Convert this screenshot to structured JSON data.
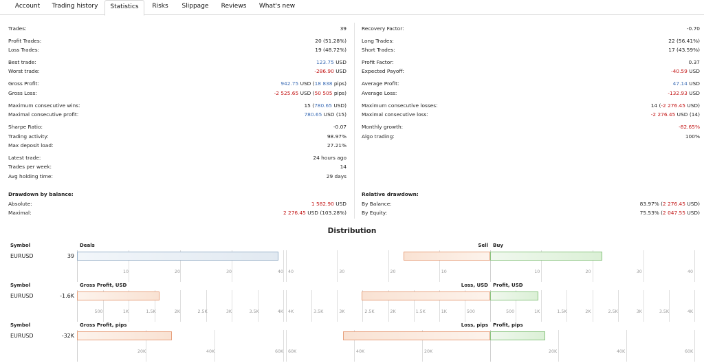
{
  "tabs": [
    {
      "label": "Account",
      "active": false
    },
    {
      "label": "Trading history",
      "active": false
    },
    {
      "label": "Statistics",
      "active": true
    },
    {
      "label": "Risks",
      "active": false
    },
    {
      "label": "Slippage",
      "active": false
    },
    {
      "label": "Reviews",
      "active": false
    },
    {
      "label": "What's new",
      "active": false
    }
  ],
  "left_stats": [
    {
      "label": "Trades:",
      "value": [
        {
          "t": "39"
        }
      ]
    },
    {
      "label": "Profit Trades:",
      "value": [
        {
          "t": "20 (51.28%)"
        }
      ]
    },
    {
      "label": "Loss Trades:",
      "value": [
        {
          "t": "19 (48.72%)"
        }
      ]
    },
    {
      "label": "Best trade:",
      "value": [
        {
          "t": "123.75",
          "c": "blue"
        },
        {
          "t": " USD"
        }
      ]
    },
    {
      "label": "Worst trade:",
      "value": [
        {
          "t": "-286.90",
          "c": "red"
        },
        {
          "t": " USD"
        }
      ]
    },
    {
      "label": "Gross Profit:",
      "value": [
        {
          "t": "942.75",
          "c": "blue"
        },
        {
          "t": " USD ("
        },
        {
          "t": "18 838",
          "c": "blue"
        },
        {
          "t": " pips)"
        }
      ]
    },
    {
      "label": "Gross Loss:",
      "value": [
        {
          "t": "-2 525.65",
          "c": "red"
        },
        {
          "t": " USD ("
        },
        {
          "t": "50 505",
          "c": "red"
        },
        {
          "t": " pips)"
        }
      ]
    },
    {
      "label": "Maximum consecutive wins:",
      "value": [
        {
          "t": "15 ("
        },
        {
          "t": "780.65",
          "c": "blue"
        },
        {
          "t": " USD)"
        }
      ]
    },
    {
      "label": "Maximal consecutive profit:",
      "value": [
        {
          "t": "780.65",
          "c": "blue"
        },
        {
          "t": " USD (15)"
        }
      ]
    },
    {
      "label": "Sharpe Ratio:",
      "value": [
        {
          "t": "-0.07"
        }
      ]
    },
    {
      "label": "Trading activity:",
      "value": [
        {
          "t": "98.97%"
        }
      ]
    },
    {
      "label": "Max deposit load:",
      "value": [
        {
          "t": "27.21%"
        }
      ]
    },
    {
      "label": "Latest trade:",
      "value": [
        {
          "t": "24 hours ago"
        }
      ]
    },
    {
      "label": "Trades per week:",
      "value": [
        {
          "t": "14"
        }
      ]
    },
    {
      "label": "Avg holding time:",
      "value": [
        {
          "t": "29 days"
        }
      ]
    }
  ],
  "right_stats": [
    {
      "label": "Recovery Factor:",
      "value": [
        {
          "t": "-0.70"
        }
      ]
    },
    {
      "label": "Long Trades:",
      "value": [
        {
          "t": "22 (56.41%)"
        }
      ]
    },
    {
      "label": "Short Trades:",
      "value": [
        {
          "t": "17 (43.59%)"
        }
      ]
    },
    {
      "label": "Profit Factor:",
      "value": [
        {
          "t": "0.37"
        }
      ]
    },
    {
      "label": "Expected Payoff:",
      "value": [
        {
          "t": "-40.59",
          "c": "red"
        },
        {
          "t": " USD"
        }
      ]
    },
    {
      "label": "Average Profit:",
      "value": [
        {
          "t": "47.14",
          "c": "blue"
        },
        {
          "t": " USD"
        }
      ]
    },
    {
      "label": "Average Loss:",
      "value": [
        {
          "t": "-132.93",
          "c": "red"
        },
        {
          "t": " USD"
        }
      ]
    },
    {
      "label": "Maximum consecutive losses:",
      "value": [
        {
          "t": "14 ("
        },
        {
          "t": "-2 276.45",
          "c": "red"
        },
        {
          "t": " USD)"
        }
      ]
    },
    {
      "label": "Maximal consecutive loss:",
      "value": [
        {
          "t": "-2 276.45",
          "c": "red"
        },
        {
          "t": " USD (14)"
        }
      ]
    },
    {
      "label": "Monthly growth:",
      "value": [
        {
          "t": "-82.65%",
          "c": "red"
        }
      ]
    },
    {
      "label": "Algo trading:",
      "value": [
        {
          "t": "100%"
        }
      ]
    }
  ],
  "drawdown_balance": {
    "title": "Drawdown by balance:",
    "rows": [
      {
        "label": "Absolute:",
        "value": [
          {
            "t": "1 582.90",
            "c": "red"
          },
          {
            "t": " USD"
          }
        ]
      },
      {
        "label": "Maximal:",
        "value": [
          {
            "t": "2 276.45",
            "c": "red"
          },
          {
            "t": " USD (103.28%)"
          }
        ]
      }
    ]
  },
  "relative_drawdown": {
    "title": "Relative drawdown:",
    "rows": [
      {
        "label": "By Balance:",
        "value": [
          {
            "t": "83.97% ("
          },
          {
            "t": "2 276.45",
            "c": "red"
          },
          {
            "t": " USD)"
          }
        ]
      },
      {
        "label": "By Equity:",
        "value": [
          {
            "t": "75.53% ("
          },
          {
            "t": "2 047.55",
            "c": "red"
          },
          {
            "t": " USD)"
          }
        ]
      }
    ]
  },
  "distribution": {
    "title": "Distribution",
    "sections": [
      {
        "symbol_header": "Symbol",
        "left_header": "Deals",
        "right_header_left": "Sell",
        "right_header_right": "Buy",
        "symbol": "EURUSD",
        "left_value": "39",
        "left_bar_fraction": 0.975,
        "left_ticks": [
          "10",
          "20",
          "30",
          "40"
        ],
        "right_ticks_left": [
          "40",
          "30",
          "20",
          "10"
        ],
        "right_ticks_right": [
          "10",
          "20",
          "30",
          "40"
        ],
        "sell_fraction": 0.425,
        "buy_fraction": 0.55
      },
      {
        "symbol_header": "Symbol",
        "left_header": "Gross Profit, USD",
        "right_header_left": "Loss, USD",
        "right_header_right": "Profit, USD",
        "symbol": "EURUSD",
        "left_value": "-1.6K",
        "left_bar_fraction": 0.4,
        "left_ticks": [
          "500",
          "1K",
          "1.5K",
          "2K",
          "2.5K",
          "3K",
          "3.5K",
          "4K"
        ],
        "right_ticks_left": [
          "4K",
          "3.5K",
          "3K",
          "2.5K",
          "2K",
          "1.5K",
          "1K",
          "500"
        ],
        "right_ticks_right": [
          "500",
          "1K",
          "1.5K",
          "2K",
          "2.5K",
          "3K",
          "3.5K",
          "4K"
        ],
        "sell_fraction": 0.63,
        "buy_fraction": 0.235
      },
      {
        "symbol_header": "Symbol",
        "left_header": "Gross Profit, pips",
        "right_header_left": "Loss, pips",
        "right_header_right": "Profit, pips",
        "symbol": "EURUSD",
        "left_value": "-32K",
        "left_bar_fraction": 0.46,
        "left_ticks": [
          "20K",
          "40K",
          "60K"
        ],
        "right_ticks_left": [
          "60K",
          "40K",
          "20K"
        ],
        "right_ticks_right": [
          "20K",
          "40K",
          "60K"
        ],
        "sell_fraction": 0.72,
        "buy_fraction": 0.27
      }
    ]
  }
}
